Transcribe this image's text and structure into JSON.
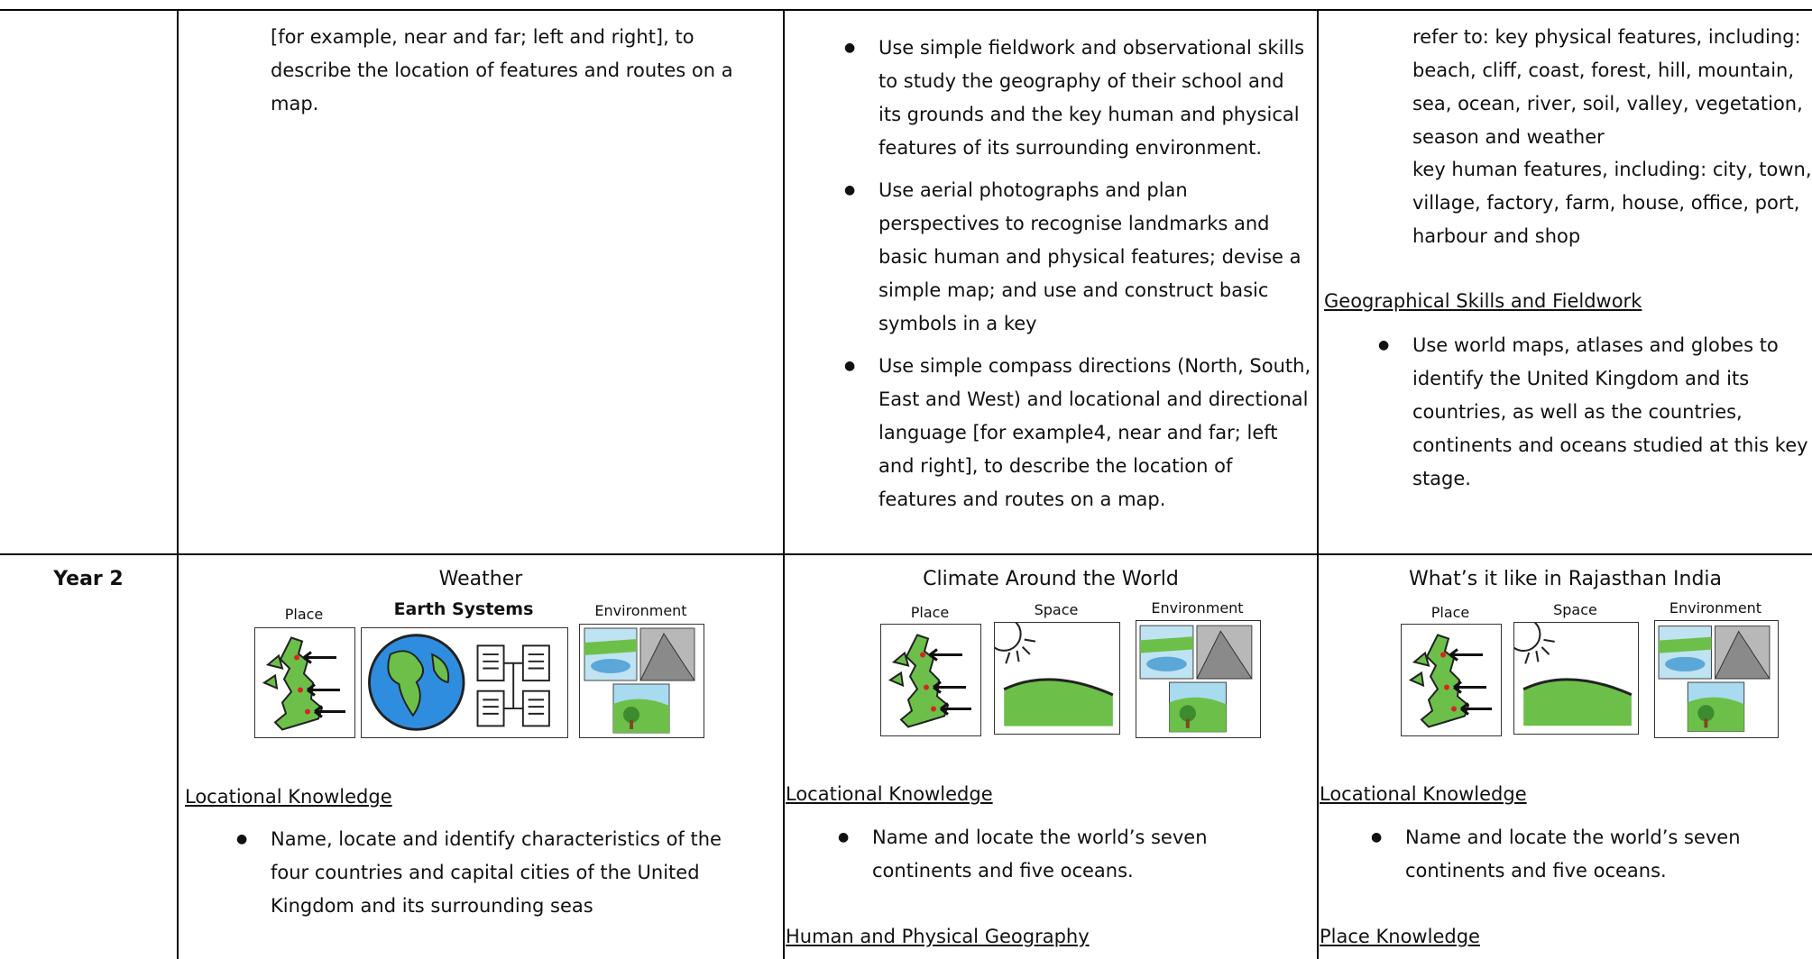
{
  "row1": {
    "cell1": {
      "text": "[for example, near and far; left and right], to describe the location of features and routes on a map."
    },
    "cell2": {
      "bullets": [
        "Use simple fieldwork and observational skills to study the geography of their school and its grounds and the key human and physical features of its surrounding environment.",
        "Use aerial photographs and plan perspectives to recognise landmarks and basic human and physical features; devise a simple map; and use and construct basic symbols in a key",
        "Use simple compass directions (North, South, East and West) and locational and directional language [for example4, near and far; left and right], to describe the location of features and routes on a map."
      ]
    },
    "cell3": {
      "lines": [
        "refer to: key physical features, including: beach, cliff, coast, forest, hill, mountain, sea, ocean, river, soil, valley, vegetation, season and weather",
        "key human features, including: city, town, village, factory, farm, house, office, port, harbour and shop"
      ],
      "heading": "Geographical Skills and Fieldwork",
      "bullets": [
        "Use world maps, atlases and globes to identify the United Kingdom and its countries, as well as the countries, continents and oceans studied at this key stage."
      ]
    }
  },
  "row2": {
    "label": "Year 2",
    "cell1": {
      "title": "Weather",
      "icon_labels": [
        "Place",
        "Earth Systems",
        "Environment"
      ],
      "heading": "Locational Knowledge",
      "bullets": [
        "Name, locate and identify characteristics of the four countries and capital cities of the United Kingdom and its surrounding seas"
      ]
    },
    "cell2": {
      "title": "Climate Around the World",
      "icon_labels": [
        "Place",
        "Space",
        "Environment"
      ],
      "heading": "Locational Knowledge",
      "bullets": [
        "Name and locate the world’s seven continents and five oceans."
      ],
      "heading2": "Human and Physical Geography"
    },
    "cell3": {
      "title": "What’s it like in Rajasthan India",
      "icon_labels": [
        "Place",
        "Space",
        "Environment"
      ],
      "heading": "Locational Knowledge",
      "bullets": [
        "Name and locate the world’s seven continents and five oceans."
      ],
      "heading2": "Place Knowledge"
    }
  }
}
